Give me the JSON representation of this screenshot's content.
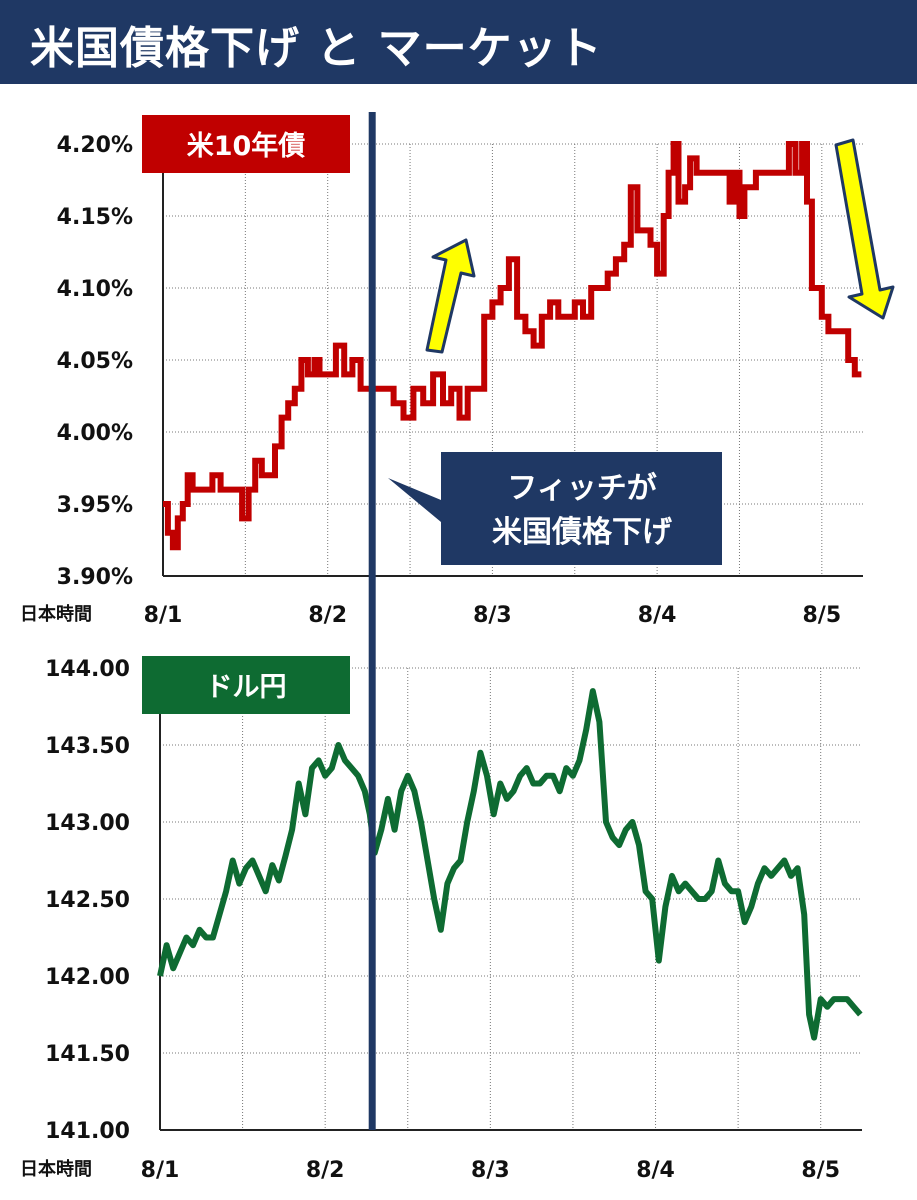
{
  "header": {
    "title": "米国債格下げ と マーケット"
  },
  "colors": {
    "header_bg": "#1f3864",
    "bond_line": "#c00000",
    "fx_line": "#0e6b32",
    "event_line": "#1f3864",
    "arrow_fill": "#ffff00"
  },
  "annotation": {
    "line1": "フィッチが",
    "line2": "米国債格下げ",
    "event_x": 2.27,
    "icon": "callout-box"
  },
  "chart_data": [
    {
      "type": "line",
      "tag_label": "米10年債",
      "xlabel": "日本時間",
      "x_ticks": [
        "8/1",
        "8/2",
        "8/3",
        "8/4",
        "8/5"
      ],
      "x_tick_values": [
        1,
        2,
        3,
        4,
        5
      ],
      "xlim": [
        1,
        5.25
      ],
      "ylim": [
        3.9,
        4.2
      ],
      "y_ticks": [
        "3.90%",
        "3.95%",
        "4.00%",
        "4.05%",
        "4.10%",
        "4.15%",
        "4.20%"
      ],
      "y_tick_values": [
        3.9,
        3.95,
        4.0,
        4.05,
        4.1,
        4.15,
        4.2
      ],
      "grid": true,
      "arrows": [
        {
          "direction": "up",
          "icon": "up-arrow-icon"
        },
        {
          "direction": "down",
          "icon": "down-arrow-icon"
        }
      ],
      "series": [
        {
          "values": [
            [
              1.0,
              3.95
            ],
            [
              1.03,
              3.93
            ],
            [
              1.06,
              3.92
            ],
            [
              1.09,
              3.94
            ],
            [
              1.12,
              3.95
            ],
            [
              1.15,
              3.97
            ],
            [
              1.18,
              3.96
            ],
            [
              1.22,
              3.96
            ],
            [
              1.26,
              3.96
            ],
            [
              1.3,
              3.97
            ],
            [
              1.35,
              3.96
            ],
            [
              1.4,
              3.96
            ],
            [
              1.45,
              3.96
            ],
            [
              1.48,
              3.94
            ],
            [
              1.52,
              3.96
            ],
            [
              1.56,
              3.98
            ],
            [
              1.6,
              3.97
            ],
            [
              1.64,
              3.97
            ],
            [
              1.68,
              3.99
            ],
            [
              1.72,
              4.01
            ],
            [
              1.76,
              4.02
            ],
            [
              1.8,
              4.03
            ],
            [
              1.84,
              4.05
            ],
            [
              1.88,
              4.04
            ],
            [
              1.92,
              4.05
            ],
            [
              1.95,
              4.04
            ],
            [
              2.0,
              4.04
            ],
            [
              2.05,
              4.06
            ],
            [
              2.1,
              4.04
            ],
            [
              2.15,
              4.05
            ],
            [
              2.2,
              4.03
            ],
            [
              2.27,
              4.03
            ],
            [
              2.33,
              4.03
            ],
            [
              2.4,
              4.02
            ],
            [
              2.46,
              4.01
            ],
            [
              2.52,
              4.03
            ],
            [
              2.58,
              4.02
            ],
            [
              2.64,
              4.04
            ],
            [
              2.7,
              4.02
            ],
            [
              2.75,
              4.03
            ],
            [
              2.8,
              4.01
            ],
            [
              2.85,
              4.03
            ],
            [
              2.9,
              4.03
            ],
            [
              2.95,
              4.08
            ],
            [
              3.0,
              4.09
            ],
            [
              3.05,
              4.1
            ],
            [
              3.1,
              4.12
            ],
            [
              3.15,
              4.08
            ],
            [
              3.2,
              4.07
            ],
            [
              3.25,
              4.06
            ],
            [
              3.3,
              4.08
            ],
            [
              3.35,
              4.09
            ],
            [
              3.4,
              4.08
            ],
            [
              3.45,
              4.08
            ],
            [
              3.5,
              4.09
            ],
            [
              3.55,
              4.08
            ],
            [
              3.6,
              4.1
            ],
            [
              3.65,
              4.1
            ],
            [
              3.7,
              4.11
            ],
            [
              3.75,
              4.12
            ],
            [
              3.8,
              4.13
            ],
            [
              3.84,
              4.17
            ],
            [
              3.88,
              4.14
            ],
            [
              3.92,
              4.14
            ],
            [
              3.96,
              4.13
            ],
            [
              4.0,
              4.11
            ],
            [
              4.04,
              4.15
            ],
            [
              4.07,
              4.18
            ],
            [
              4.1,
              4.2
            ],
            [
              4.13,
              4.16
            ],
            [
              4.17,
              4.17
            ],
            [
              4.2,
              4.19
            ],
            [
              4.24,
              4.18
            ],
            [
              4.28,
              4.18
            ],
            [
              4.32,
              4.18
            ],
            [
              4.36,
              4.18
            ],
            [
              4.4,
              4.18
            ],
            [
              4.44,
              4.16
            ],
            [
              4.47,
              4.18
            ],
            [
              4.5,
              4.15
            ],
            [
              4.53,
              4.17
            ],
            [
              4.57,
              4.17
            ],
            [
              4.6,
              4.18
            ],
            [
              4.64,
              4.18
            ],
            [
              4.68,
              4.18
            ],
            [
              4.72,
              4.18
            ],
            [
              4.76,
              4.18
            ],
            [
              4.8,
              4.2
            ],
            [
              4.84,
              4.18
            ],
            [
              4.88,
              4.2
            ],
            [
              4.91,
              4.16
            ],
            [
              4.94,
              4.1
            ],
            [
              4.97,
              4.1
            ],
            [
              5.0,
              4.08
            ],
            [
              5.04,
              4.07
            ],
            [
              5.08,
              4.07
            ],
            [
              5.12,
              4.07
            ],
            [
              5.16,
              4.05
            ],
            [
              5.2,
              4.04
            ],
            [
              5.24,
              4.04
            ]
          ]
        }
      ]
    },
    {
      "type": "line",
      "tag_label": "ドル円",
      "xlabel": "日本時間",
      "x_ticks": [
        "8/1",
        "8/2",
        "8/3",
        "8/4",
        "8/5"
      ],
      "x_tick_values": [
        1,
        2,
        3,
        4,
        5
      ],
      "xlim": [
        1,
        5.25
      ],
      "ylim": [
        141.0,
        144.0
      ],
      "y_ticks": [
        "141.00",
        "141.50",
        "142.00",
        "142.50",
        "143.00",
        "143.50",
        "144.00"
      ],
      "y_tick_values": [
        141.0,
        141.5,
        142.0,
        142.5,
        143.0,
        143.5,
        144.0
      ],
      "grid": true,
      "series": [
        {
          "values": [
            [
              1.0,
              142.0
            ],
            [
              1.04,
              142.2
            ],
            [
              1.08,
              142.05
            ],
            [
              1.12,
              142.15
            ],
            [
              1.16,
              142.25
            ],
            [
              1.2,
              142.2
            ],
            [
              1.24,
              142.3
            ],
            [
              1.28,
              142.25
            ],
            [
              1.32,
              142.25
            ],
            [
              1.36,
              142.4
            ],
            [
              1.4,
              142.55
            ],
            [
              1.44,
              142.75
            ],
            [
              1.48,
              142.6
            ],
            [
              1.52,
              142.7
            ],
            [
              1.56,
              142.75
            ],
            [
              1.6,
              142.65
            ],
            [
              1.64,
              142.55
            ],
            [
              1.68,
              142.72
            ],
            [
              1.72,
              142.62
            ],
            [
              1.76,
              142.78
            ],
            [
              1.8,
              142.95
            ],
            [
              1.84,
              143.25
            ],
            [
              1.88,
              143.05
            ],
            [
              1.92,
              143.35
            ],
            [
              1.96,
              143.4
            ],
            [
              2.0,
              143.3
            ],
            [
              2.04,
              143.35
            ],
            [
              2.08,
              143.5
            ],
            [
              2.12,
              143.4
            ],
            [
              2.16,
              143.35
            ],
            [
              2.2,
              143.3
            ],
            [
              2.24,
              143.2
            ],
            [
              2.27,
              143.05
            ],
            [
              2.3,
              142.8
            ],
            [
              2.34,
              142.95
            ],
            [
              2.38,
              143.15
            ],
            [
              2.42,
              142.95
            ],
            [
              2.46,
              143.2
            ],
            [
              2.5,
              143.3
            ],
            [
              2.54,
              143.2
            ],
            [
              2.58,
              143.0
            ],
            [
              2.62,
              142.75
            ],
            [
              2.66,
              142.5
            ],
            [
              2.7,
              142.3
            ],
            [
              2.74,
              142.6
            ],
            [
              2.78,
              142.7
            ],
            [
              2.82,
              142.75
            ],
            [
              2.86,
              143.0
            ],
            [
              2.9,
              143.2
            ],
            [
              2.94,
              143.45
            ],
            [
              2.98,
              143.3
            ],
            [
              3.02,
              143.05
            ],
            [
              3.06,
              143.25
            ],
            [
              3.1,
              143.15
            ],
            [
              3.14,
              143.2
            ],
            [
              3.18,
              143.3
            ],
            [
              3.22,
              143.35
            ],
            [
              3.26,
              143.25
            ],
            [
              3.3,
              143.25
            ],
            [
              3.34,
              143.3
            ],
            [
              3.38,
              143.3
            ],
            [
              3.42,
              143.2
            ],
            [
              3.46,
              143.35
            ],
            [
              3.5,
              143.3
            ],
            [
              3.54,
              143.4
            ],
            [
              3.58,
              143.6
            ],
            [
              3.62,
              143.85
            ],
            [
              3.66,
              143.65
            ],
            [
              3.7,
              143.0
            ],
            [
              3.74,
              142.9
            ],
            [
              3.78,
              142.85
            ],
            [
              3.82,
              142.95
            ],
            [
              3.86,
              143.0
            ],
            [
              3.9,
              142.85
            ],
            [
              3.94,
              142.55
            ],
            [
              3.98,
              142.5
            ],
            [
              4.02,
              142.1
            ],
            [
              4.06,
              142.45
            ],
            [
              4.1,
              142.65
            ],
            [
              4.14,
              142.55
            ],
            [
              4.18,
              142.6
            ],
            [
              4.22,
              142.55
            ],
            [
              4.26,
              142.5
            ],
            [
              4.3,
              142.5
            ],
            [
              4.34,
              142.55
            ],
            [
              4.38,
              142.75
            ],
            [
              4.42,
              142.6
            ],
            [
              4.46,
              142.55
            ],
            [
              4.5,
              142.55
            ],
            [
              4.54,
              142.35
            ],
            [
              4.58,
              142.45
            ],
            [
              4.62,
              142.6
            ],
            [
              4.66,
              142.7
            ],
            [
              4.7,
              142.65
            ],
            [
              4.74,
              142.7
            ],
            [
              4.78,
              142.75
            ],
            [
              4.82,
              142.65
            ],
            [
              4.86,
              142.7
            ],
            [
              4.9,
              142.4
            ],
            [
              4.93,
              141.75
            ],
            [
              4.96,
              141.6
            ],
            [
              5.0,
              141.85
            ],
            [
              5.04,
              141.8
            ],
            [
              5.08,
              141.85
            ],
            [
              5.12,
              141.85
            ],
            [
              5.16,
              141.85
            ],
            [
              5.2,
              141.8
            ],
            [
              5.24,
              141.75
            ]
          ]
        }
      ]
    }
  ]
}
